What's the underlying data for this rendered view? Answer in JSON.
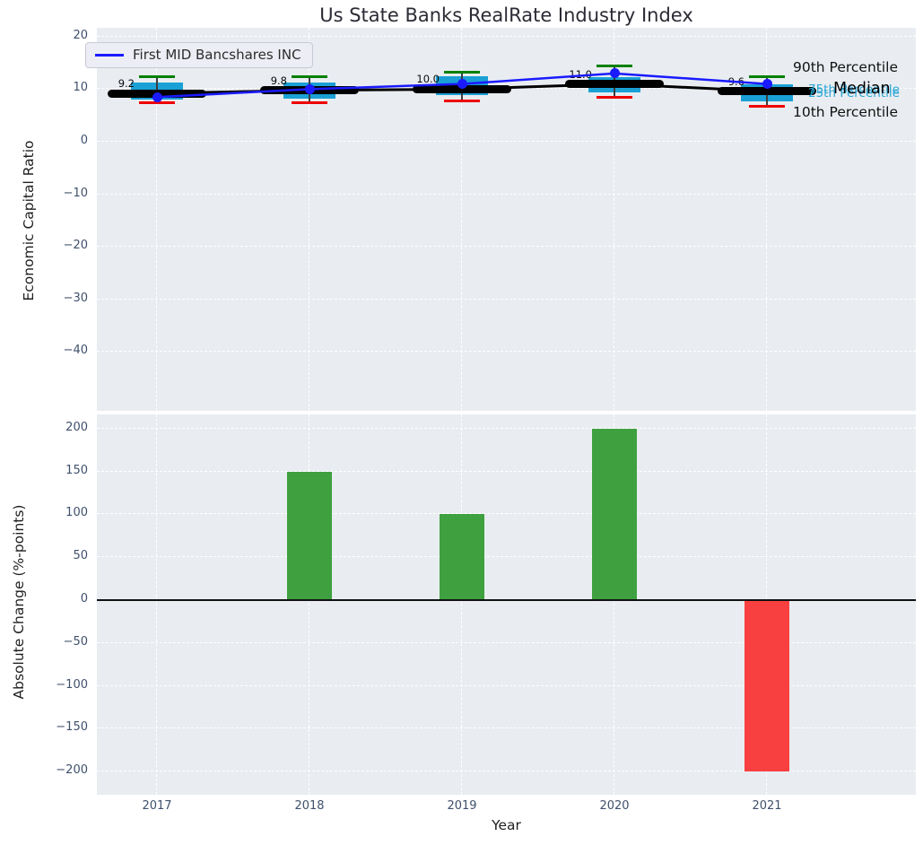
{
  "title": "Us State Banks RealRate Industry Index",
  "colors": {
    "company_line": "#1a1aff",
    "median_line": "#000000",
    "box_fill": "#1aa0d5",
    "p90_cap": "#008000",
    "p10_cap": "#ee0000",
    "bar_positive": "#3fa03f",
    "bar_negative": "#f94040",
    "plot_background": "#e9edf1"
  },
  "chart_data": [
    {
      "type": "line+boxplot",
      "title": "Us State Banks RealRate Industry Index",
      "ylabel": "Economic Capital Ratio",
      "categories": [
        "2017",
        "2018",
        "2019",
        "2020",
        "2021"
      ],
      "yticks": [
        20,
        10,
        0,
        -10,
        -20,
        -30,
        -40
      ],
      "ylim": [
        -51,
        21.7
      ],
      "grid": true,
      "legend": {
        "position": "upper left",
        "entries": [
          "First MID Bancshares INC"
        ]
      },
      "series": [
        {
          "name": "First MID Bancshares INC",
          "type": "line",
          "color": "#1a1aff",
          "values": [
            8.5,
            10.0,
            11.0,
            13.0,
            11.0
          ]
        },
        {
          "name": "Median",
          "type": "line",
          "color": "#000000",
          "values": [
            9.2,
            9.8,
            10.0,
            11.0,
            9.6
          ],
          "labels": [
            "9.2",
            "9.8",
            "10.0",
            "11.0",
            "9.6"
          ]
        }
      ],
      "percentiles": {
        "p90": {
          "label": "90th Percentile",
          "color": "#008000",
          "values": [
            12.4,
            12.4,
            13.3,
            14.4,
            12.3
          ]
        },
        "p75": {
          "label": "75th Percentile",
          "color": "#1aa0d5",
          "values": [
            11.2,
            11.2,
            12.5,
            12.3,
            10.9
          ]
        },
        "p25": {
          "label": "25th Percentile",
          "color": "#1aa0d5",
          "values": [
            8.0,
            8.2,
            8.9,
            9.4,
            7.7
          ]
        },
        "p10": {
          "label": "10th Percentile",
          "color": "#ee0000",
          "values": [
            7.4,
            7.5,
            7.7,
            8.4,
            6.8
          ]
        }
      },
      "right_annotations": {
        "p90": "90th Percentile",
        "median": "Median",
        "p75": "75th Percentile",
        "p25": "25th Percentile",
        "p10": "10th Percentile"
      }
    },
    {
      "type": "bar",
      "xlabel": "Year",
      "ylabel": "Absolute Change (%-points)",
      "categories": [
        "2017",
        "2018",
        "2019",
        "2020",
        "2021"
      ],
      "values": [
        0,
        150,
        100,
        200,
        -200
      ],
      "yticks": [
        200,
        150,
        100,
        50,
        0,
        -50,
        -100,
        -150,
        -200
      ],
      "ylim": [
        -227,
        217
      ],
      "grid": true
    }
  ]
}
